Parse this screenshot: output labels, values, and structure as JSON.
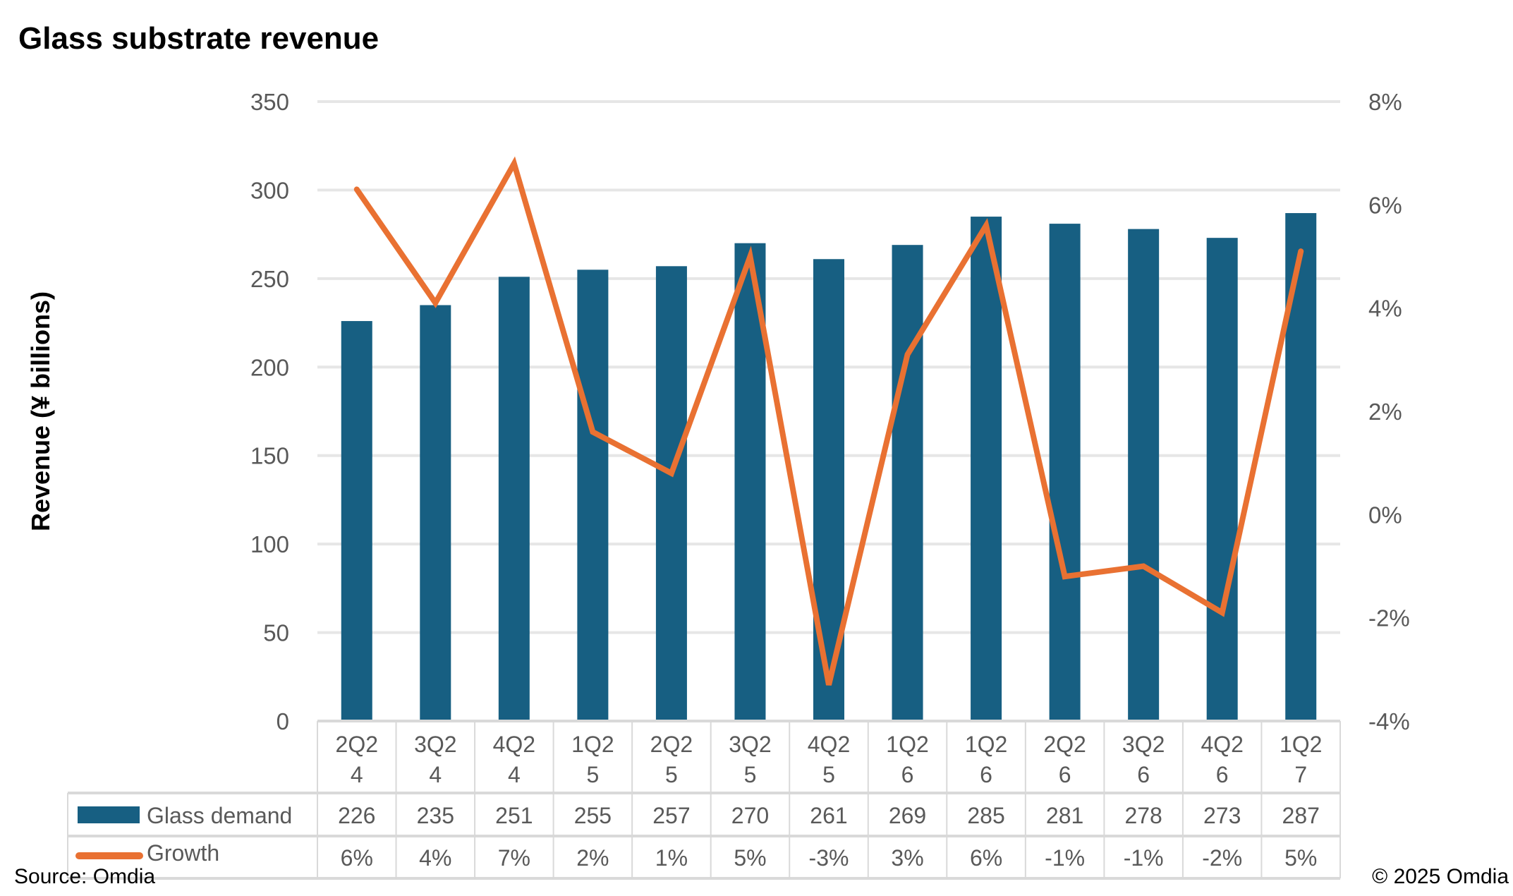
{
  "chart_data": {
    "type": "bar",
    "title": "Glass substrate revenue",
    "ylabel": "Revenue (¥ billions)",
    "y2label": "",
    "ylim": [
      0,
      350
    ],
    "yticks": [
      "0",
      "50",
      "100",
      "150",
      "200",
      "250",
      "300",
      "350"
    ],
    "y2lim": [
      -4,
      8
    ],
    "y2ticks": [
      "-4%",
      "-2%",
      "0%",
      "2%",
      "4%",
      "6%",
      "8%"
    ],
    "grid": true,
    "legend": "data-table",
    "categories": [
      "2Q24",
      "3Q24",
      "4Q24",
      "1Q25",
      "2Q25",
      "3Q25",
      "4Q25",
      "1Q26",
      "1Q26",
      "2Q26",
      "3Q26",
      "4Q26",
      "1Q27"
    ],
    "series": [
      {
        "name": "Glass demand",
        "type": "bar",
        "axis": "left",
        "color": "#175F82",
        "values": [
          226,
          235,
          251,
          255,
          257,
          270,
          261,
          269,
          285,
          281,
          278,
          273,
          287
        ]
      },
      {
        "name": "Growth",
        "type": "line",
        "axis": "right",
        "color": "#E97132",
        "values": [
          6.3,
          4.1,
          6.8,
          1.6,
          0.8,
          5.0,
          -3.3,
          3.1,
          5.6,
          -1.2,
          -1.0,
          -1.9,
          5.1
        ],
        "labels": [
          "6%",
          "4%",
          "7%",
          "2%",
          "1%",
          "5%",
          "-3%",
          "3%",
          "6%",
          "-1%",
          "-1%",
          "-2%",
          "5%"
        ]
      }
    ]
  },
  "footer": {
    "source": "Source: Omdia",
    "copyright": "© 2025 Omdia"
  }
}
